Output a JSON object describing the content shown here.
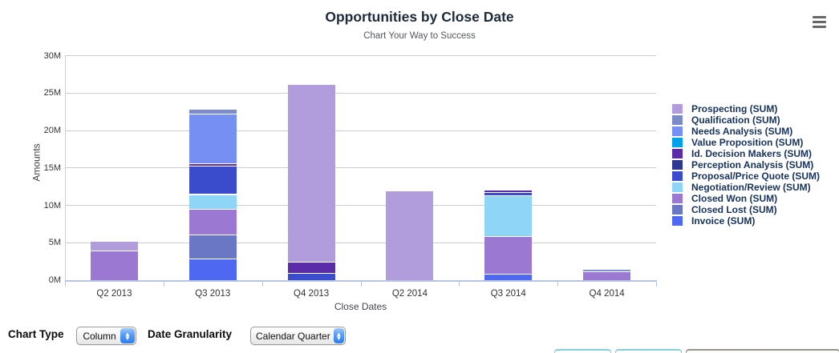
{
  "header": {
    "title": "Opportunities by Close Date",
    "subtitle": "Chart Your Way to Success"
  },
  "chart_data": {
    "type": "bar",
    "stacked": true,
    "title": "Opportunities by Close Date",
    "subtitle": "Chart Your Way to Success",
    "xlabel": "Close Dates",
    "ylabel": "Amounts",
    "ylim": [
      0,
      30
    ],
    "grid": true,
    "legend_position": "right",
    "unit": "M",
    "ytick_values": [
      0,
      5,
      10,
      15,
      20,
      25,
      30
    ],
    "ytick_labels": [
      "0M",
      "5M",
      "10M",
      "15M",
      "20M",
      "25M",
      "30M"
    ],
    "categories": [
      "Q2 2013",
      "Q3 2013",
      "Q4 2013",
      "Q2 2014",
      "Q3 2014",
      "Q4 2014"
    ],
    "series_note": "values in millions, listed bottom-to-top stacking order",
    "series": [
      {
        "name": "Invoice (SUM)",
        "color": "#4e68f2",
        "values": [
          0,
          2.9,
          0,
          0,
          0.9,
          0
        ]
      },
      {
        "name": "Closed Lost (SUM)",
        "color": "#6a77c4",
        "values": [
          0,
          3.2,
          0,
          0,
          0,
          0
        ]
      },
      {
        "name": "Closed Won (SUM)",
        "color": "#9b79d2",
        "values": [
          4.0,
          3.4,
          0,
          0,
          5.0,
          1.2
        ]
      },
      {
        "name": "Negotiation/Review (SUM)",
        "color": "#8ed5f8",
        "values": [
          0,
          2.0,
          0,
          0,
          5.4,
          0
        ]
      },
      {
        "name": "Proposal/Price Quote (SUM)",
        "color": "#3a4ccb",
        "values": [
          0,
          3.8,
          1.0,
          0,
          0.5,
          0
        ]
      },
      {
        "name": "Perception Analysis (SUM)",
        "color": "#2e3792",
        "values": [
          0,
          0,
          0,
          0,
          0,
          0
        ]
      },
      {
        "name": "Id. Decision Makers (SUM)",
        "color": "#5b2ca9",
        "values": [
          0,
          0.3,
          1.5,
          0,
          0.25,
          0
        ]
      },
      {
        "name": "Value Proposition (SUM)",
        "color": "#00a3ea",
        "values": [
          0,
          0,
          0,
          0,
          0,
          0
        ]
      },
      {
        "name": "Needs Analysis (SUM)",
        "color": "#7590f2",
        "values": [
          0,
          6.7,
          0,
          0,
          0,
          0.35
        ]
      },
      {
        "name": "Qualification (SUM)",
        "color": "#7c8bc9",
        "values": [
          0,
          0.6,
          0,
          0,
          0,
          0
        ]
      },
      {
        "name": "Prospecting (SUM)",
        "color": "#b19ddb",
        "values": [
          1.2,
          0,
          23.7,
          12,
          0,
          0
        ]
      }
    ],
    "legend": [
      {
        "label": "Prospecting (SUM)",
        "color": "#b19ddb"
      },
      {
        "label": "Qualification (SUM)",
        "color": "#7c8bc9"
      },
      {
        "label": "Needs Analysis (SUM)",
        "color": "#7590f2"
      },
      {
        "label": "Value Proposition (SUM)",
        "color": "#00a3ea"
      },
      {
        "label": "Id. Decision Makers (SUM)",
        "color": "#5b2ca9"
      },
      {
        "label": "Perception Analysis (SUM)",
        "color": "#2e3792"
      },
      {
        "label": "Proposal/Price Quote (SUM)",
        "color": "#3a4ccb"
      },
      {
        "label": "Negotiation/Review (SUM)",
        "color": "#8ed5f8"
      },
      {
        "label": "Closed Won (SUM)",
        "color": "#9b79d2"
      },
      {
        "label": "Closed Lost (SUM)",
        "color": "#6a77c4"
      },
      {
        "label": "Invoice (SUM)",
        "color": "#4e68f2"
      }
    ]
  },
  "controls": {
    "chart_type_label": "Chart Type",
    "chart_type_value": "Column",
    "date_granularity_label": "Date Granularity",
    "date_granularity_value": "Calendar Quarter"
  },
  "icons": {
    "menu": "hamburger-icon",
    "select_stepper": "up-down-stepper-icon"
  }
}
